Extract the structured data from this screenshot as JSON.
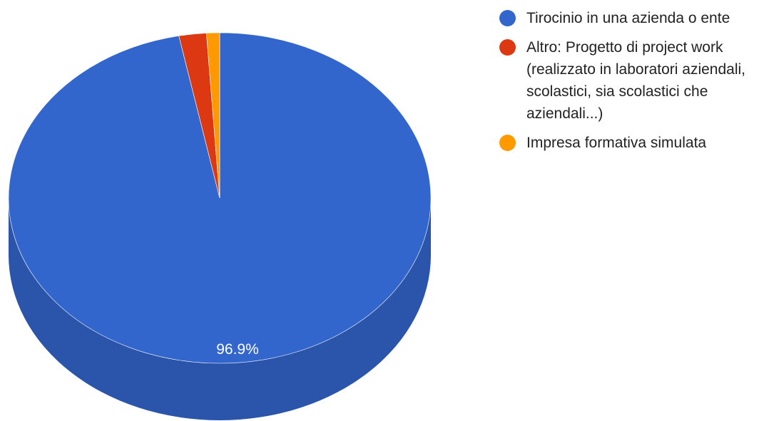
{
  "chart_data": {
    "type": "pie",
    "style": "3d",
    "title": "",
    "legend_position": "right",
    "slices": [
      {
        "label": "Tirocinio in una azienda o ente",
        "value": 96.9,
        "color": "#3366cc",
        "side_color": "#2a55ab",
        "data_label": "96.9%"
      },
      {
        "label": "Altro: Progetto di project work (realizzato in laboratori aziendali, scolastici, sia scolastici che aziendali...)",
        "value": 2.1,
        "color": "#dc3912",
        "side_color": "#b62e0e",
        "data_label": ""
      },
      {
        "label": "Impresa formativa simulata",
        "value": 1.0,
        "color": "#ff9900",
        "side_color": "#d48000",
        "data_label": ""
      }
    ]
  }
}
